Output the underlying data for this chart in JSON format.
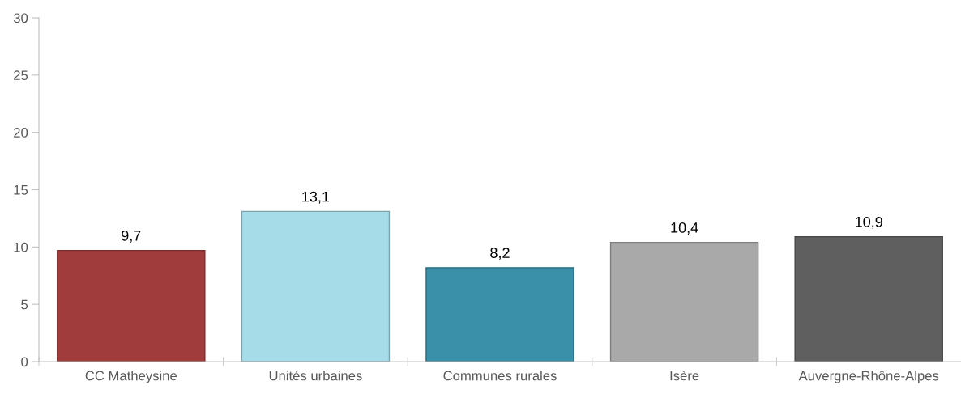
{
  "chart_data": {
    "type": "bar",
    "categories": [
      "CC Matheysine",
      "Unités urbaines",
      "Communes rurales",
      "Isère",
      "Auvergne-Rhône-Alpes"
    ],
    "values": [
      9.7,
      13.1,
      8.2,
      10.4,
      10.9
    ],
    "colors": [
      "#a03c3c",
      "#a6dbe8",
      "#3a90a8",
      "#a9a9a9",
      "#5f5f5f"
    ],
    "value_labels": [
      "9,7",
      "13,1",
      "8,2",
      "10,4",
      "10,9"
    ],
    "ylim": [
      0,
      30
    ],
    "yticks": [
      0,
      5,
      10,
      15,
      20,
      25,
      30
    ],
    "grid": false,
    "legend": false
  }
}
